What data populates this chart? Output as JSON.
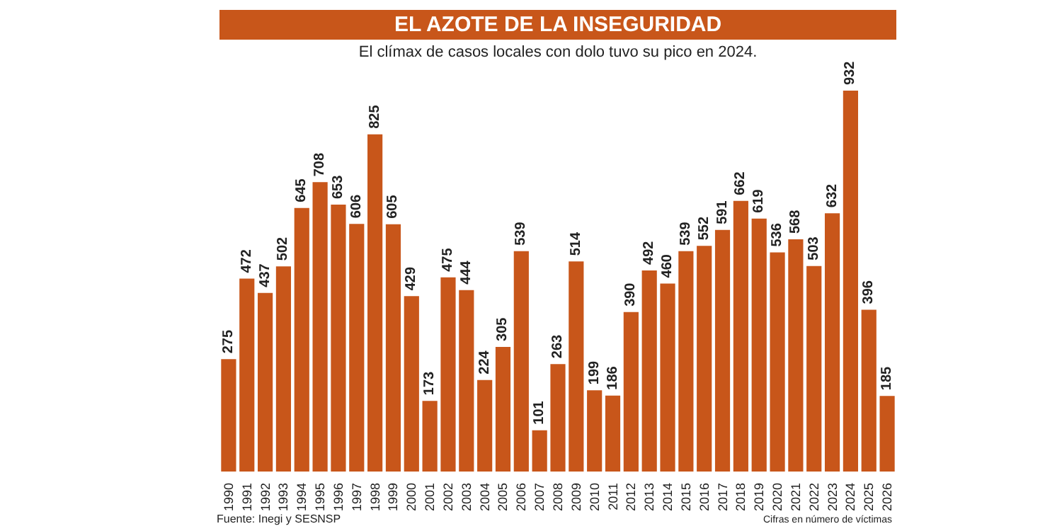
{
  "chart_data": {
    "type": "bar",
    "title": "EL AZOTE DE LA INSEGURIDAD",
    "subtitle": "El clímax de casos locales con dolo tuvo su pico en 2024.",
    "categories": [
      "1990",
      "1991",
      "1992",
      "1993",
      "1994",
      "1995",
      "1996",
      "1997",
      "1998",
      "1999",
      "2000",
      "2001",
      "2002",
      "2003",
      "2004",
      "2005",
      "2006",
      "2007",
      "2008",
      "2009",
      "2010",
      "2011",
      "2012",
      "2013",
      "2014",
      "2015",
      "2016",
      "2017",
      "2018",
      "2019",
      "2020",
      "2021",
      "2022",
      "2023",
      "2024",
      "2025",
      "2026"
    ],
    "values": [
      275,
      472,
      437,
      502,
      645,
      708,
      653,
      606,
      825,
      605,
      429,
      173,
      475,
      444,
      224,
      305,
      539,
      101,
      263,
      514,
      199,
      186,
      390,
      492,
      460,
      539,
      552,
      591,
      662,
      619,
      536,
      568,
      503,
      632,
      932,
      396,
      185
    ],
    "color": "#c8561a",
    "data_labels": true,
    "annotations": [
      "Fuente: Inegi y SESNSP",
      "Cifras en número de víctimas"
    ]
  }
}
